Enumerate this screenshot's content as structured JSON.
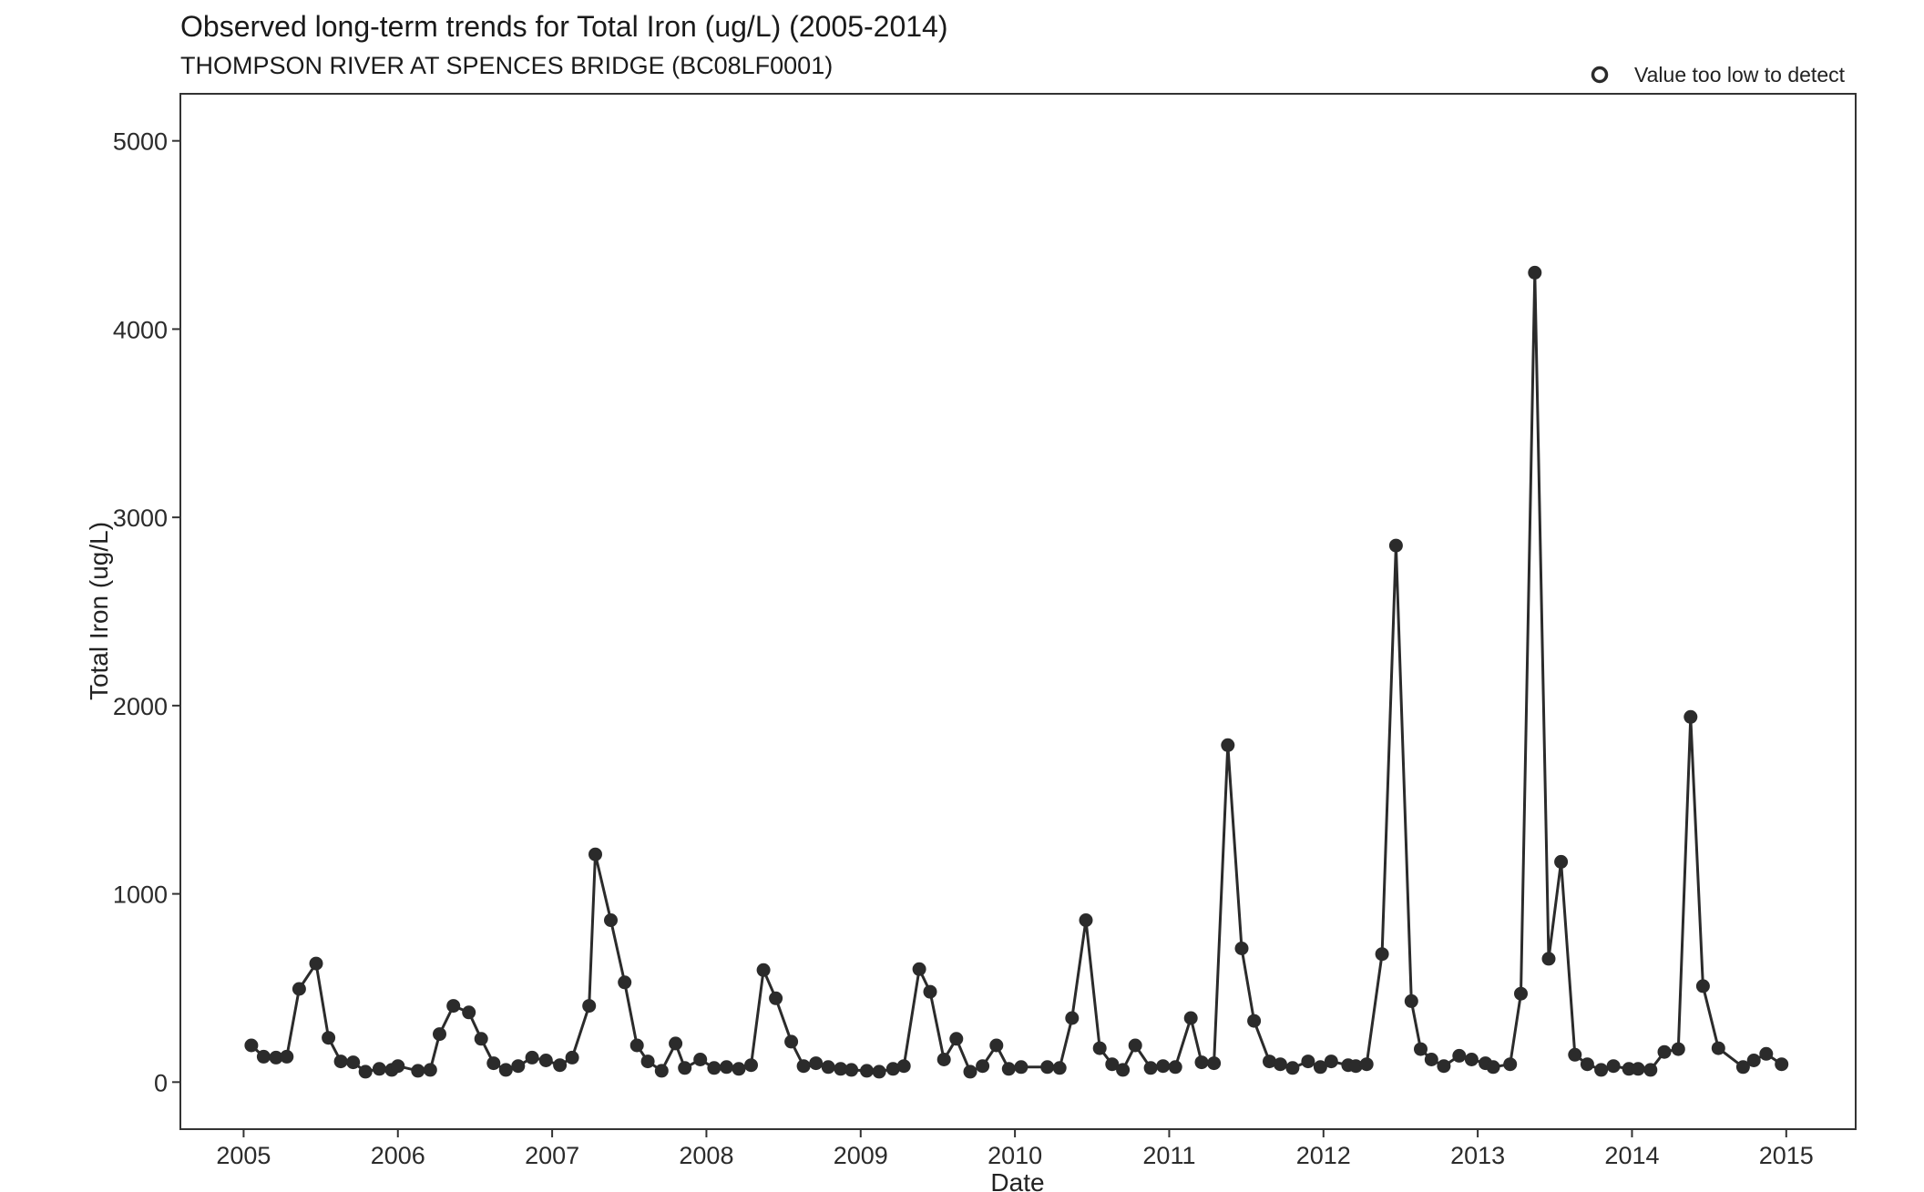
{
  "chart_data": {
    "type": "line",
    "title": "Observed long-term trends for Total Iron (ug/L) (2005-2014)",
    "subtitle": "THOMPSON RIVER AT SPENCES BRIDGE (BC08LF0001)",
    "xlabel": "Date",
    "ylabel": "Total Iron (ug/L)",
    "xlim": [
      2004.59,
      2015.45
    ],
    "ylim": [
      -250,
      5250
    ],
    "x_ticks": [
      2005,
      2006,
      2007,
      2008,
      2009,
      2010,
      2011,
      2012,
      2013,
      2014,
      2015
    ],
    "x_tick_labels": [
      "2005",
      "2006",
      "2007",
      "2008",
      "2009",
      "2010",
      "2011",
      "2012",
      "2013",
      "2014",
      "2015"
    ],
    "y_ticks": [
      0,
      1000,
      2000,
      3000,
      4000,
      5000
    ],
    "y_tick_labels": [
      "0",
      "1000",
      "2000",
      "3000",
      "4000",
      "5000"
    ],
    "grid": false,
    "legend": {
      "position": "top-right",
      "entries": [
        {
          "label": "Value too low to detect",
          "marker": "open-circle"
        }
      ]
    },
    "colors": {
      "series": "#2b2b2b",
      "background": "#ffffff"
    },
    "series": [
      {
        "x": [
          2005.05,
          2005.13,
          2005.21,
          2005.28,
          2005.36,
          2005.47,
          2005.55,
          2005.63,
          2005.71,
          2005.79,
          2005.88,
          2005.96,
          2006.0,
          2006.13,
          2006.21,
          2006.27,
          2006.36,
          2006.46,
          2006.54,
          2006.62,
          2006.7,
          2006.78,
          2006.87,
          2006.96,
          2007.05,
          2007.13,
          2007.24,
          2007.28,
          2007.38,
          2007.47,
          2007.55,
          2007.62,
          2007.71,
          2007.8,
          2007.86,
          2007.96,
          2008.05,
          2008.13,
          2008.21,
          2008.29,
          2008.37,
          2008.45,
          2008.55,
          2008.63,
          2008.71,
          2008.79,
          2008.87,
          2008.94,
          2009.04,
          2009.12,
          2009.21,
          2009.28,
          2009.38,
          2009.45,
          2009.54,
          2009.62,
          2009.71,
          2009.79,
          2009.88,
          2009.96,
          2010.04,
          2010.21,
          2010.29,
          2010.37,
          2010.46,
          2010.55,
          2010.63,
          2010.7,
          2010.78,
          2010.88,
          2010.96,
          2011.04,
          2011.14,
          2011.21,
          2011.29,
          2011.38,
          2011.47,
          2011.55,
          2011.65,
          2011.72,
          2011.8,
          2011.9,
          2011.98,
          2012.05,
          2012.16,
          2012.21,
          2012.28,
          2012.38,
          2012.47,
          2012.57,
          2012.63,
          2012.7,
          2012.78,
          2012.88,
          2012.96,
          2013.05,
          2013.1,
          2013.21,
          2013.28,
          2013.37,
          2013.46,
          2013.54,
          2013.63,
          2013.71,
          2013.8,
          2013.88,
          2013.98,
          2014.04,
          2014.12,
          2014.21,
          2014.3,
          2014.38,
          2014.46,
          2014.56,
          2014.72,
          2014.79,
          2014.87,
          2014.97
        ],
        "values": [
          195,
          135,
          130,
          135,
          495,
          630,
          235,
          110,
          105,
          55,
          70,
          65,
          85,
          60,
          65,
          255,
          405,
          370,
          230,
          100,
          65,
          85,
          130,
          115,
          90,
          130,
          405,
          1210,
          860,
          530,
          195,
          110,
          60,
          205,
          75,
          120,
          75,
          80,
          70,
          90,
          595,
          445,
          215,
          85,
          100,
          80,
          70,
          65,
          60,
          55,
          70,
          85,
          600,
          480,
          120,
          230,
          55,
          85,
          195,
          70,
          80,
          80,
          75,
          340,
          860,
          180,
          95,
          65,
          195,
          75,
          85,
          80,
          340,
          105,
          100,
          1790,
          710,
          325,
          110,
          95,
          75,
          110,
          80,
          110,
          90,
          85,
          95,
          680,
          2850,
          430,
          175,
          120,
          85,
          140,
          120,
          100,
          80,
          95,
          470,
          4300,
          655,
          1170,
          145,
          95,
          65,
          85,
          70,
          70,
          65,
          160,
          175,
          1940,
          510,
          180,
          80,
          115,
          150,
          95
        ]
      }
    ]
  }
}
